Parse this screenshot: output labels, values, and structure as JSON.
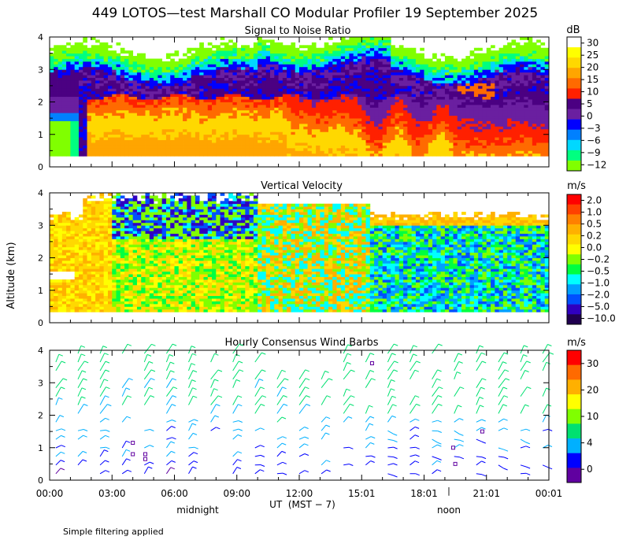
{
  "page_title": "449 LOTOS—test Marshall CO Modular Profiler 19 September 2025",
  "y_axis_title": "Altitude (km)",
  "footnote": "Simple filtering applied",
  "chart_data": [
    {
      "type": "heatmap",
      "title": "Signal to Noise Ratio",
      "x_range_hours": [
        0,
        24
      ],
      "ylim": [
        0,
        4
      ],
      "y_ticks": [
        "0",
        "1",
        "2",
        "3",
        "4"
      ],
      "colorbar_unit": "dB",
      "colorbar_labels": [
        "30",
        "25",
        "20",
        "15",
        "10",
        "5",
        "0",
        "−3",
        "−6",
        "−9",
        "−12"
      ],
      "colorbar_colors": [
        "#ffffff",
        "#ffff00",
        "#ffd800",
        "#ffa500",
        "#ff6a00",
        "#ff2000",
        "#4b0082",
        "#6a1fa0",
        "#0000ff",
        "#0080ff",
        "#00d8ff",
        "#00ff80",
        "#80ff00"
      ]
    },
    {
      "type": "heatmap",
      "title": "Vertical Velocity",
      "x_range_hours": [
        0,
        24
      ],
      "ylim": [
        0,
        4
      ],
      "y_ticks": [
        "0",
        "1",
        "2",
        "3",
        "4"
      ],
      "colorbar_unit": "m/s",
      "colorbar_labels": [
        "2.0",
        "1.0",
        "0.5",
        "0.2",
        "0.0",
        "−0.2",
        "−0.5",
        "−1.0",
        "−2.0",
        "−5.0",
        "−10.0"
      ],
      "colorbar_colors": [
        "#ff0000",
        "#ff4000",
        "#ff8000",
        "#ffb000",
        "#ffd800",
        "#ffff00",
        "#80ff00",
        "#00ff40",
        "#00ffff",
        "#00a0ff",
        "#0050ff",
        "#3000c0",
        "#200050"
      ]
    },
    {
      "type": "scatter",
      "title": "Hourly Consensus Wind Barbs",
      "x_range_hours": [
        0,
        24
      ],
      "ylim": [
        0,
        4
      ],
      "y_ticks": [
        "0",
        "1",
        "2",
        "3",
        "4"
      ],
      "colorbar_unit": "m/s",
      "colorbar_labels": [
        "30",
        "20",
        "10",
        "4",
        "0"
      ],
      "colorbar_colors": [
        "#ff0000",
        "#ff6a00",
        "#ffb000",
        "#ffff00",
        "#80ff00",
        "#00e070",
        "#00b0ff",
        "#0000ff",
        "#6000a0"
      ]
    }
  ],
  "x_axis": {
    "tick_labels": [
      "00:00",
      "03:00",
      "06:00",
      "09:00",
      "12:00",
      "15:01",
      "18:01",
      "21:01",
      "00:01"
    ],
    "title": "UT  (MST − 7)",
    "midnight_label": "midnight",
    "noon_label": "noon"
  }
}
